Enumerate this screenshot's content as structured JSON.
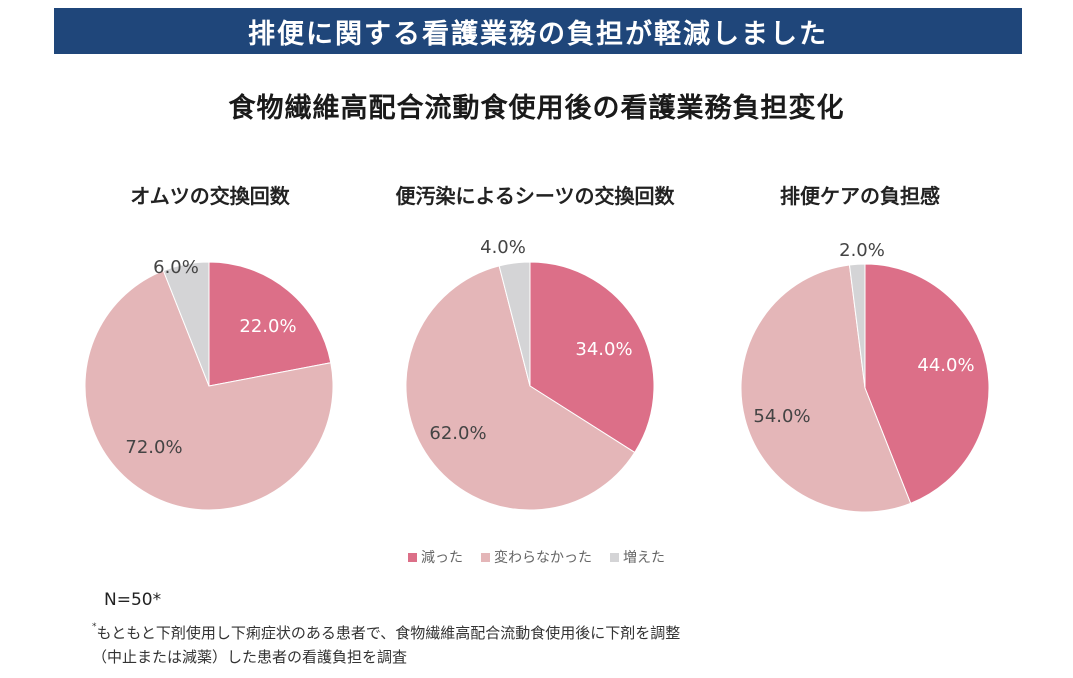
{
  "banner": "排便に関する看護業務の負担が軽減しました",
  "title": "食物繊維高配合流動食使用後の看護業務負担変化",
  "colors": {
    "decreased": "#dc6f88",
    "unchanged": "#e4b6b8",
    "increased": "#d4d4d6",
    "banner": "#1f467a"
  },
  "chart_data": [
    {
      "type": "pie",
      "title": "オムツの交換回数",
      "categories": [
        "減った",
        "変わらなかった",
        "増えた"
      ],
      "values": [
        22.0,
        72.0,
        6.0
      ],
      "labels": [
        "22.0%",
        "72.0%",
        "6.0%"
      ]
    },
    {
      "type": "pie",
      "title": "便汚染によるシーツの交換回数",
      "categories": [
        "減った",
        "変わらなかった",
        "増えた"
      ],
      "values": [
        34.0,
        62.0,
        4.0
      ],
      "labels": [
        "34.0%",
        "62.0%",
        "4.0%"
      ]
    },
    {
      "type": "pie",
      "title": "排便ケアの負担感",
      "categories": [
        "減った",
        "変わらなかった",
        "増えた"
      ],
      "values": [
        44.0,
        54.0,
        2.0
      ],
      "labels": [
        "44.0%",
        "54.0%",
        "2.0%"
      ]
    }
  ],
  "legend": [
    "減った",
    "変わらなかった",
    "増えた"
  ],
  "n_label": "N=50*",
  "note": {
    "mark": "*",
    "line1": "もともと下剤使用し下痢症状のある患者で、食物繊維高配合流動食使用後に下剤を調整",
    "line2": "（中止または減薬）した患者の看護負担を調査"
  }
}
